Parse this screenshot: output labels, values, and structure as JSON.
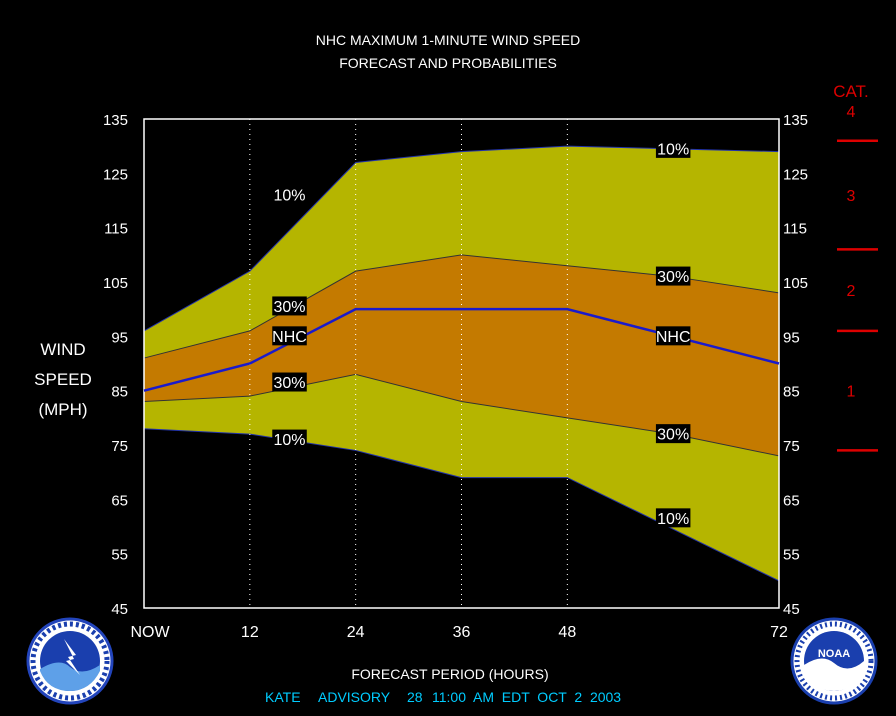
{
  "chart_data": {
    "type": "area",
    "title": "NHC MAXIMUM 1-MINUTE WIND SPEED",
    "subtitle": "FORECAST AND PROBABILITIES",
    "ylabel_lines": [
      "WIND",
      "SPEED",
      "(MPH)"
    ],
    "xlabel": "FORECAST PERIOD (HOURS)",
    "ylim": [
      45,
      135
    ],
    "xlim": [
      0,
      72
    ],
    "yticks": [
      45,
      55,
      65,
      75,
      85,
      95,
      105,
      115,
      125,
      135
    ],
    "xticks": [
      {
        "x": 0,
        "label": "NOW"
      },
      {
        "x": 12,
        "label": "12"
      },
      {
        "x": 24,
        "label": "24"
      },
      {
        "x": 36,
        "label": "36"
      },
      {
        "x": 48,
        "label": "48"
      },
      {
        "x": 72,
        "label": "72"
      }
    ],
    "gridlines_x": [
      12,
      24,
      36,
      48
    ],
    "x": [
      0,
      12,
      24,
      36,
      48,
      60,
      72
    ],
    "series": [
      {
        "name": "10%",
        "key": "upper10",
        "values": [
          96,
          107,
          127,
          129,
          130,
          129.5,
          129
        ]
      },
      {
        "name": "30%",
        "key": "upper30",
        "values": [
          91,
          96,
          107,
          110,
          108,
          106,
          103
        ]
      },
      {
        "name": "NHC",
        "key": "nhc",
        "values": [
          85,
          90,
          100,
          100,
          100,
          95,
          90
        ]
      },
      {
        "name": "30%",
        "key": "lower30",
        "values": [
          83,
          84,
          88,
          83,
          80,
          77,
          73
        ]
      },
      {
        "name": "10%",
        "key": "lower10",
        "values": [
          78,
          77,
          74,
          69,
          69,
          59.5,
          50
        ]
      }
    ],
    "curve_labels": [
      {
        "text": "10%",
        "x": 60,
        "y": 129.5
      },
      {
        "text": "10%",
        "x": 16.5,
        "y": 121
      },
      {
        "text": "30%",
        "x": 60,
        "y": 106
      },
      {
        "text": "30%",
        "x": 16.5,
        "y": 100.5
      },
      {
        "text": "NHC",
        "x": 60,
        "y": 95
      },
      {
        "text": "NHC",
        "x": 16.5,
        "y": 95
      },
      {
        "text": "30%",
        "x": 16.5,
        "y": 86.5
      },
      {
        "text": "30%",
        "x": 60,
        "y": 77
      },
      {
        "text": "10%",
        "x": 16.5,
        "y": 76
      },
      {
        "text": "10%",
        "x": 60,
        "y": 61.5
      }
    ],
    "categories_scale": {
      "title": "CAT.",
      "boundaries": [
        74,
        96,
        111,
        131
      ],
      "labels": [
        {
          "text": "1",
          "y": 85
        },
        {
          "text": "2",
          "y": 103.5
        },
        {
          "text": "3",
          "y": 121
        },
        {
          "text": "4",
          "y": 136.5
        }
      ]
    },
    "colors": {
      "outer_band": "#b5b500",
      "inner_band": "#c47a00",
      "nhc_line": "#1a1acc",
      "category": "#dd0000",
      "footer": "#00ccff",
      "frame": "#ffffff"
    }
  },
  "footer": {
    "storm": "KATE",
    "advisory_label": "ADVISORY",
    "advisory_number": "28",
    "issued": "11:00  AM  EDT  OCT  2  2003"
  },
  "logos": {
    "left": {
      "name": "nws-logo",
      "text": "NATIONAL WEATHER SERVICE"
    },
    "right": {
      "name": "noaa-logo",
      "text": "NOAA"
    }
  }
}
